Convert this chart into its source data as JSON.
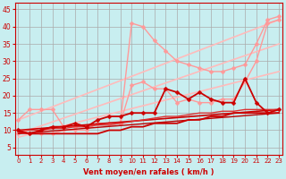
{
  "bg_color": "#c8eef0",
  "grid_color": "#aaaaaa",
  "text_color": "#cc0000",
  "xlabel": "Vent moyen/en rafales ( km/h )",
  "ylabel_ticks": [
    5,
    10,
    15,
    20,
    25,
    30,
    35,
    40,
    45
  ],
  "xlim": [
    -0.3,
    23.3
  ],
  "ylim": [
    3,
    47
  ],
  "x_ticks": [
    0,
    1,
    2,
    3,
    4,
    5,
    6,
    7,
    8,
    9,
    10,
    11,
    12,
    13,
    14,
    15,
    16,
    17,
    18,
    19,
    20,
    21,
    22,
    23
  ],
  "lines": [
    {
      "x": [
        0,
        1,
        2,
        3,
        4,
        5,
        6,
        7,
        8,
        9,
        10,
        11,
        12,
        13,
        14,
        15,
        16,
        17,
        18,
        19,
        20,
        21,
        22,
        23
      ],
      "y": [
        13,
        16,
        16,
        16,
        11,
        11,
        11,
        12,
        12,
        12,
        41,
        40,
        36,
        33,
        30,
        29,
        28,
        27,
        27,
        28,
        29,
        35,
        42,
        43
      ],
      "color": "#ff9999",
      "lw": 1.0,
      "marker": "D",
      "ms": 2.5,
      "zorder": 3
    },
    {
      "x": [
        0,
        1,
        2,
        3,
        4,
        5,
        6,
        7,
        8,
        9,
        10,
        11,
        12,
        13,
        14,
        15,
        16,
        17,
        18,
        19,
        20,
        21,
        22,
        23
      ],
      "y": [
        9,
        9,
        9,
        9,
        10,
        10,
        10,
        12,
        12,
        12,
        23,
        24,
        22,
        22,
        18,
        19,
        18,
        18,
        19,
        19,
        24,
        30,
        41,
        42
      ],
      "color": "#ff9999",
      "lw": 1.0,
      "marker": "D",
      "ms": 2.5,
      "zorder": 3
    },
    {
      "x": [
        0,
        23
      ],
      "y": [
        13,
        42
      ],
      "color": "#ffbbbb",
      "lw": 1.2,
      "marker": null,
      "ms": 0,
      "zorder": 2
    },
    {
      "x": [
        0,
        23
      ],
      "y": [
        9,
        35
      ],
      "color": "#ffbbbb",
      "lw": 1.2,
      "marker": null,
      "ms": 0,
      "zorder": 2
    },
    {
      "x": [
        0,
        23
      ],
      "y": [
        8,
        27
      ],
      "color": "#ffbbbb",
      "lw": 1.2,
      "marker": null,
      "ms": 0,
      "zorder": 2
    },
    {
      "x": [
        0,
        1,
        2,
        3,
        4,
        5,
        6,
        7,
        8,
        9,
        10,
        11,
        12,
        13,
        14,
        15,
        16,
        17,
        18,
        19,
        20,
        21,
        22,
        23
      ],
      "y": [
        10,
        9,
        10,
        11,
        11,
        12,
        11,
        13,
        14,
        14,
        15,
        15,
        15,
        22,
        21,
        19,
        21,
        19,
        18,
        18,
        25,
        18,
        15,
        16
      ],
      "color": "#cc0000",
      "lw": 1.3,
      "marker": "D",
      "ms": 2.5,
      "zorder": 5
    },
    {
      "x": [
        0,
        1,
        2,
        3,
        4,
        5,
        6,
        7,
        8,
        9,
        10,
        11,
        12,
        13,
        14,
        15,
        16,
        17,
        18,
        19,
        20,
        21,
        22,
        23
      ],
      "y": [
        9.5,
        9,
        9,
        9,
        9,
        9,
        9,
        9,
        10,
        10,
        11,
        11,
        12,
        12,
        12,
        13,
        13,
        14,
        14,
        15,
        15,
        15,
        15,
        15
      ],
      "color": "#cc0000",
      "lw": 1.3,
      "marker": null,
      "ms": 0,
      "zorder": 5
    },
    {
      "x": [
        0,
        23
      ],
      "y": [
        10,
        16
      ],
      "color": "#cc0000",
      "lw": 1.2,
      "marker": null,
      "ms": 0,
      "zorder": 4
    },
    {
      "x": [
        0,
        23
      ],
      "y": [
        9,
        15
      ],
      "color": "#bb0000",
      "lw": 1.0,
      "marker": null,
      "ms": 0,
      "zorder": 4
    },
    {
      "x": [
        0,
        1,
        2,
        3,
        4,
        5,
        6,
        7,
        8,
        9,
        10,
        11,
        12,
        13,
        14,
        15,
        16,
        17,
        18,
        19,
        20,
        21,
        22,
        23
      ],
      "y": [
        10,
        10,
        10,
        10.5,
        10.5,
        11,
        11,
        11.5,
        11.5,
        12,
        12.5,
        13,
        13.5,
        14,
        14,
        14.5,
        15,
        15,
        15.5,
        15.5,
        16,
        16,
        16,
        16
      ],
      "color": "#dd3333",
      "lw": 1.0,
      "marker": null,
      "ms": 0,
      "zorder": 4
    }
  ]
}
